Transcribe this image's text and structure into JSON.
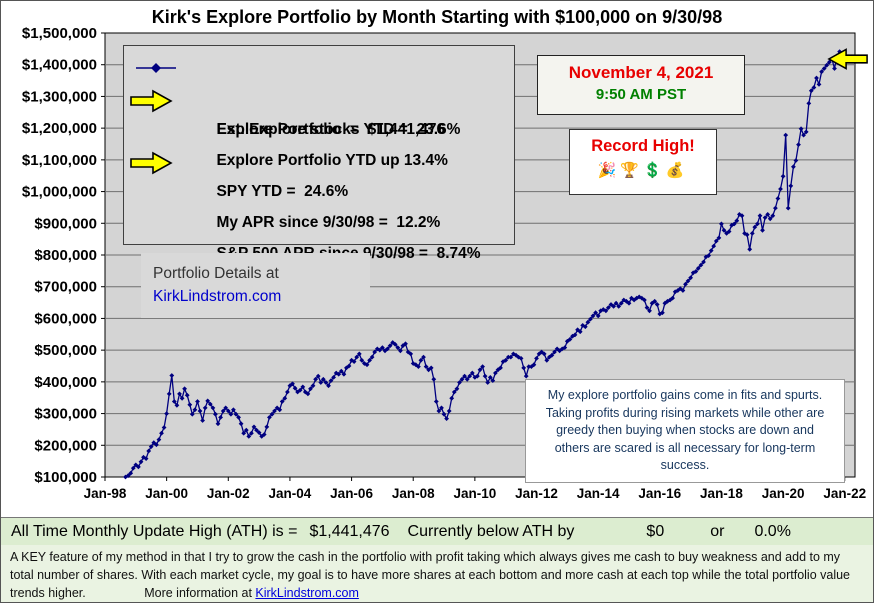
{
  "chart_data": {
    "type": "line",
    "title": "Kirk's Explore Portfolio by Month Starting with $100,000 on 9/30/98",
    "xlabel": "",
    "ylabel": "",
    "ylim": [
      100000,
      1500000
    ],
    "y_tick_step": 100000,
    "y_tick_format": "$#,##0",
    "grid": "horizontal",
    "plot_bg": "#d4d4d4",
    "gridline_color": "#6f6f6f",
    "legend_position": "top-left",
    "x_domain": [
      "1998-01",
      "2022-05"
    ],
    "x_ticks": [
      {
        "m": "1998-01",
        "label": "Jan-98"
      },
      {
        "m": "2000-01",
        "label": "Jan-00"
      },
      {
        "m": "2002-01",
        "label": "Jan-02"
      },
      {
        "m": "2004-01",
        "label": "Jan-04"
      },
      {
        "m": "2006-01",
        "label": "Jan-06"
      },
      {
        "m": "2008-01",
        "label": "Jan-08"
      },
      {
        "m": "2010-01",
        "label": "Jan-10"
      },
      {
        "m": "2012-01",
        "label": "Jan-12"
      },
      {
        "m": "2014-01",
        "label": "Jan-14"
      },
      {
        "m": "2016-01",
        "label": "Jan-16"
      },
      {
        "m": "2018-01",
        "label": "Jan-18"
      },
      {
        "m": "2020-01",
        "label": "Jan-20"
      },
      {
        "m": "2022-01",
        "label": "Jan-22"
      }
    ],
    "series": [
      {
        "name": "Explore Portfolio",
        "color": "#000080",
        "marker": "diamond",
        "unit": "USD",
        "start_month": "1998-09",
        "final_value": 1441476,
        "values_usd": [
          100000,
          104000,
          112000,
          128000,
          138000,
          132000,
          148000,
          162000,
          158000,
          182000,
          196000,
          208000,
          202000,
          218000,
          238000,
          256000,
          300000,
          362000,
          420000,
          338000,
          326000,
          362000,
          348000,
          378000,
          358000,
          328000,
          298000,
          312000,
          338000,
          308000,
          278000,
          318000,
          340000,
          330000,
          318000,
          298000,
          268000,
          288000,
          308000,
          318000,
          308000,
          298000,
          312000,
          298000,
          288000,
          268000,
          238000,
          248000,
          228000,
          238000,
          258000,
          248000,
          240000,
          228000,
          234000,
          258000,
          288000,
          298000,
          308000,
          318000,
          312000,
          338000,
          348000,
          368000,
          388000,
          394000,
          380000,
          368000,
          374000,
          384000,
          368000,
          362000,
          378000,
          388000,
          408000,
          418000,
          398000,
          408000,
          398000,
          388000,
          404000,
          414000,
          428000,
          424000,
          434000,
          424000,
          444000,
          450000,
          468000,
          464000,
          478000,
          488000,
          468000,
          458000,
          454000,
          468000,
          478000,
          494000,
          504000,
          500000,
          508000,
          498000,
          504000,
          514000,
          524000,
          518000,
          508000,
          498000,
          514000,
          520000,
          494000,
          488000,
          458000,
          454000,
          448000,
          468000,
          478000,
          448000,
          438000,
          444000,
          408000,
          338000,
          308000,
          318000,
          298000,
          284000,
          308000,
          348000,
          368000,
          378000,
          398000,
          408000,
          418000,
          408000,
          418000,
          428000,
          414000,
          418000,
          438000,
          448000,
          418000,
          398000,
          414000,
          404000,
          428000,
          438000,
          444000,
          464000,
          468000,
          478000,
          478000,
          488000,
          484000,
          478000,
          474000,
          444000,
          418000,
          448000,
          448000,
          454000,
          474000,
          488000,
          494000,
          488000,
          468000,
          478000,
          484000,
          494000,
          504000,
          498000,
          504000,
          508000,
          528000,
          534000,
          544000,
          548000,
          564000,
          558000,
          578000,
          574000,
          588000,
          598000,
          608000,
          618000,
          608000,
          624000,
          628000,
          624000,
          634000,
          644000,
          638000,
          648000,
          638000,
          648000,
          658000,
          654000,
          648000,
          664000,
          658000,
          664000,
          668000,
          664000,
          658000,
          634000,
          624000,
          648000,
          654000,
          644000,
          614000,
          618000,
          648000,
          654000,
          658000,
          664000,
          684000,
          688000,
          694000,
          688000,
          708000,
          718000,
          728000,
          744000,
          748000,
          758000,
          768000,
          778000,
          794000,
          798000,
          814000,
          828000,
          844000,
          854000,
          898000,
          878000,
          868000,
          874000,
          894000,
          898000,
          908000,
          928000,
          924000,
          868000,
          864000,
          818000,
          868000,
          888000,
          898000,
          924000,
          878000,
          918000,
          928000,
          914000,
          924000,
          948000,
          978000,
          1008000,
          1048000,
          1178000,
          948000,
          1018000,
          1078000,
          1098000,
          1148000,
          1198000,
          1178000,
          1188000,
          1278000,
          1318000,
          1328000,
          1358000,
          1338000,
          1378000,
          1388000,
          1398000,
          1408000,
          1418000,
          1388000,
          1428000,
          1441476
        ]
      }
    ]
  },
  "legend": {
    "rows": [
      {
        "label": "Explore Portfolio  =  $1,441,476",
        "marker": "line-diamond"
      },
      {
        "label": "Est. Explore stocks YTD =  23.6%",
        "arrow": true
      },
      {
        "label": "Explore Portfolio YTD up 13.4%"
      },
      {
        "label": "SPY YTD =  24.6%",
        "arrow": true
      },
      {
        "label": "My APR since 9/30/98 =  12.2%"
      },
      {
        "label": "S&P 500 APR since 9/30/98 =  8.74%"
      }
    ]
  },
  "datebox": {
    "date": "November 4, 2021",
    "date_color": "#ff0000",
    "time": "9:50 AM PST",
    "time_color": "#008000"
  },
  "record_high": {
    "text": "Record High!",
    "color": "#ff0000",
    "icons": "🎉🏆💲💰"
  },
  "details_box": {
    "line1": "Portfolio Details at",
    "line2": "KirkLindstrom.com",
    "link_color": "#0000cc"
  },
  "note_box": {
    "text": "My explore portfolio gains come in fits and spurts. Taking profits during rising markets while other are greedy then buying when stocks are down and others are scared is all necessary for long-term success."
  },
  "ath_bar": {
    "label": "All Time Monthly Update High (ATH) is =",
    "value": "$1,441,476",
    "below_label": "Currently below ATH by",
    "below_value": "$0",
    "or_label": "or",
    "below_pct": "0.0%"
  },
  "footer": {
    "text": "A KEY feature of my method in that I try to grow the cash in the portfolio with profit taking which always gives me cash to buy weakness and add to my total number of shares.  With each market cycle, my goal is to have more shares at each bottom and more cash at each top while the total portfolio value trends higher.",
    "more_info": "More information at",
    "link": "KirkLindstrom.com"
  },
  "colors": {
    "series": "#000080",
    "arrow_fill": "#ffff00",
    "plot_bg": "#d4d4d4",
    "ath_bg": "#dcedd0",
    "footer_bg": "#eaf3e2"
  }
}
